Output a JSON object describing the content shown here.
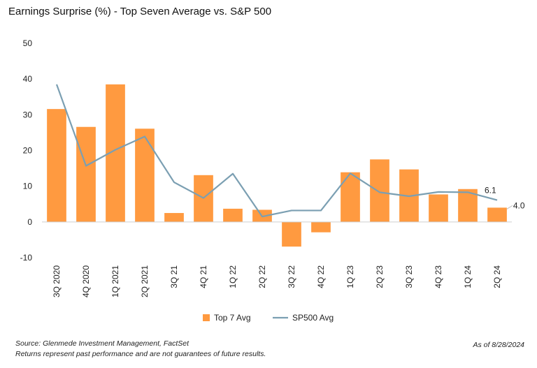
{
  "chart_data": {
    "type": "bar",
    "title": "Earnings Surprise (%) - Top Seven Average vs. S&P 500",
    "categories": [
      "3Q 2020",
      "4Q 2020",
      "1Q 2021",
      "2Q 2021",
      "3Q 21",
      "4Q 21",
      "1Q 22",
      "2Q 22",
      "3Q 22",
      "4Q 22",
      "1Q 23",
      "2Q 23",
      "3Q 23",
      "4Q 23",
      "1Q 24",
      "2Q 24"
    ],
    "series": [
      {
        "name": "Top 7 Avg",
        "kind": "bar",
        "color": "#ff9a40",
        "values": [
          31.6,
          26.6,
          38.5,
          26.1,
          2.5,
          13.1,
          3.7,
          3.4,
          -6.9,
          -2.9,
          13.9,
          17.5,
          14.7,
          7.7,
          9.2,
          4.0
        ]
      },
      {
        "name": "SP500 Avg",
        "kind": "line",
        "color": "#7b9fb2",
        "values": [
          38.5,
          15.7,
          20.2,
          23.9,
          11.1,
          6.7,
          13.5,
          1.5,
          3.2,
          3.2,
          13.6,
          8.3,
          7.2,
          8.4,
          8.3,
          6.1
        ]
      }
    ],
    "ylim": [
      -10,
      50
    ],
    "yticks": [
      50,
      40,
      30,
      20,
      10,
      0,
      -10
    ],
    "data_labels": {
      "line_last": "6.1",
      "bar_last": "4.0"
    },
    "legend": "bottom-center",
    "grid": false
  },
  "footer": {
    "source": "Source: Glenmede Investment Management, FactSet",
    "disclaimer": "Returns represent past performance and are not guarantees of future results.",
    "as_of": "As of 8/28/2024"
  }
}
